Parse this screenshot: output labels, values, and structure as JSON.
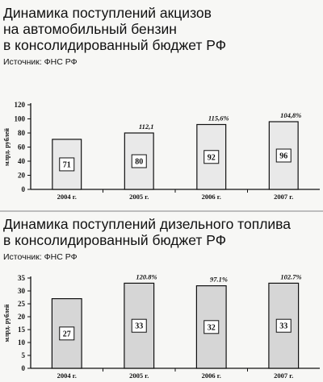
{
  "chart_data": [
    {
      "type": "bar",
      "title": "Динамика поступлений акцизов\nна автомобильный бензин\nв консолидированный бюджет РФ",
      "source": "Источник: ФНС РФ",
      "ylabel": "млрд. рублей",
      "categories": [
        "2004 г.",
        "2005 г.",
        "2006 г.",
        "2007 г."
      ],
      "values": [
        71,
        80,
        92,
        96
      ],
      "value_labels": [
        "71",
        "80",
        "92",
        "96"
      ],
      "growth_labels": [
        "",
        "112,1",
        "115,6%",
        "104,8%"
      ],
      "ylim": [
        0,
        120
      ],
      "yticks": [
        0,
        20,
        40,
        60,
        80,
        100,
        120
      ],
      "grid": false,
      "colors": {
        "bar_fill": "#e9e9e9",
        "bar_stroke": "#111111",
        "label_fill": "#ffffff"
      }
    },
    {
      "type": "bar",
      "title": "Динамика поступлений дизельного топлива\nв консолидированный бюджет РФ",
      "source": "Источник: ФНС РФ",
      "ylabel": "млрд. рублей",
      "categories": [
        "2004 г.",
        "2005 г.",
        "2006 г.",
        "2007 г."
      ],
      "values": [
        27,
        33,
        32,
        33
      ],
      "value_labels": [
        "27",
        "33",
        "32",
        "33"
      ],
      "growth_labels": [
        "",
        "120.8%",
        "97.1%",
        "102.7%"
      ],
      "ylim": [
        0,
        35
      ],
      "yticks": [
        0,
        5,
        10,
        15,
        20,
        25,
        30,
        35
      ],
      "grid": false,
      "colors": {
        "bar_fill": "#d6d6d6",
        "bar_stroke": "#111111",
        "label_fill": "#ffffff"
      }
    }
  ]
}
